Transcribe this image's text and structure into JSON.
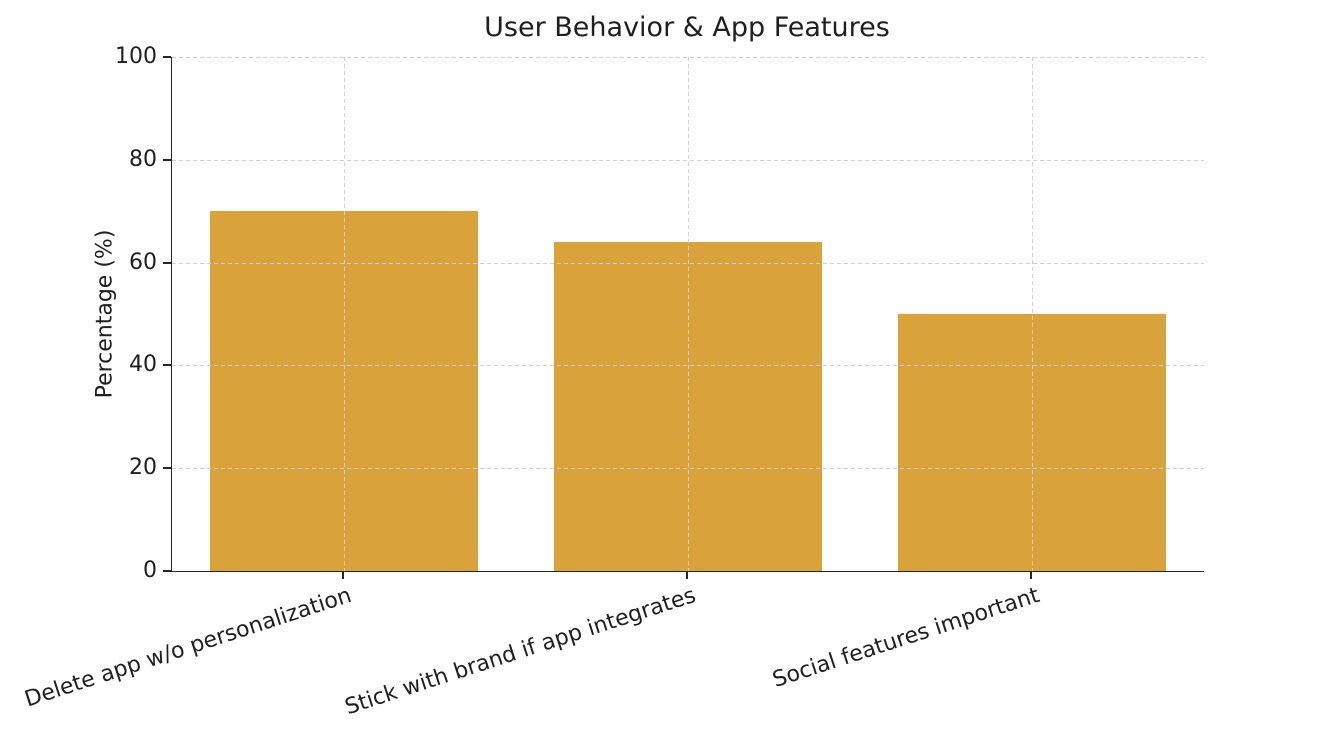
{
  "chart_data": {
    "type": "bar",
    "title": "User Behavior & App Features",
    "categories": [
      "Delete app w/o personalization",
      "Stick with brand if app integrates",
      "Social features important"
    ],
    "values": [
      70,
      64,
      50
    ],
    "xlabel": "",
    "ylabel": "Percentage (%)",
    "ylim": [
      0,
      100
    ],
    "yticks": [
      0,
      20,
      40,
      60,
      80,
      100
    ],
    "bar_color": "#D9A23B",
    "grid": "both-axes-dashed",
    "grid_color": "#cfcfcf",
    "background_color": "#ffffff",
    "legend": ""
  }
}
